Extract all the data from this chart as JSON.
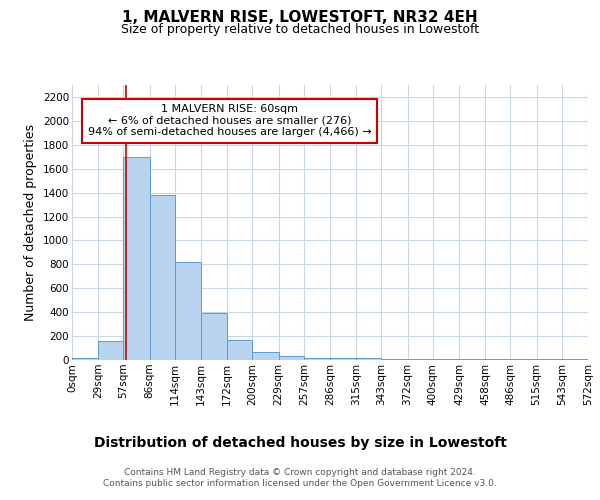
{
  "title": "1, MALVERN RISE, LOWESTOFT, NR32 4EH",
  "subtitle": "Size of property relative to detached houses in Lowestoft",
  "xlabel": "Distribution of detached houses by size in Lowestoft",
  "ylabel": "Number of detached properties",
  "bin_edges": [
    0,
    29,
    57,
    86,
    114,
    143,
    172,
    200,
    229,
    257,
    286,
    315,
    343,
    372,
    400,
    429,
    458,
    486,
    515,
    543,
    572
  ],
  "bar_heights": [
    15,
    160,
    1700,
    1380,
    820,
    390,
    165,
    65,
    30,
    20,
    20,
    15,
    10,
    5,
    5,
    5,
    5,
    5,
    5,
    5
  ],
  "bar_color": "#b8d4ee",
  "bar_edge_color": "#5b9bd5",
  "property_size": 60,
  "red_line_color": "#cc0000",
  "annotation_text": "1 MALVERN RISE: 60sqm\n← 6% of detached houses are smaller (276)\n94% of semi-detached houses are larger (4,466) →",
  "annotation_box_color": "#ffffff",
  "annotation_box_edge": "#cc0000",
  "ylim": [
    0,
    2300
  ],
  "yticks": [
    0,
    200,
    400,
    600,
    800,
    1000,
    1200,
    1400,
    1600,
    1800,
    2000,
    2200
  ],
  "footer_text": "Contains HM Land Registry data © Crown copyright and database right 2024.\nContains public sector information licensed under the Open Government Licence v3.0.",
  "background_color": "#ffffff",
  "grid_color": "#c8d8e8",
  "title_fontsize": 11,
  "subtitle_fontsize": 9,
  "xlabel_fontsize": 10,
  "ylabel_fontsize": 9,
  "tick_fontsize": 7.5,
  "footer_fontsize": 6.5,
  "annotation_fontsize": 8
}
